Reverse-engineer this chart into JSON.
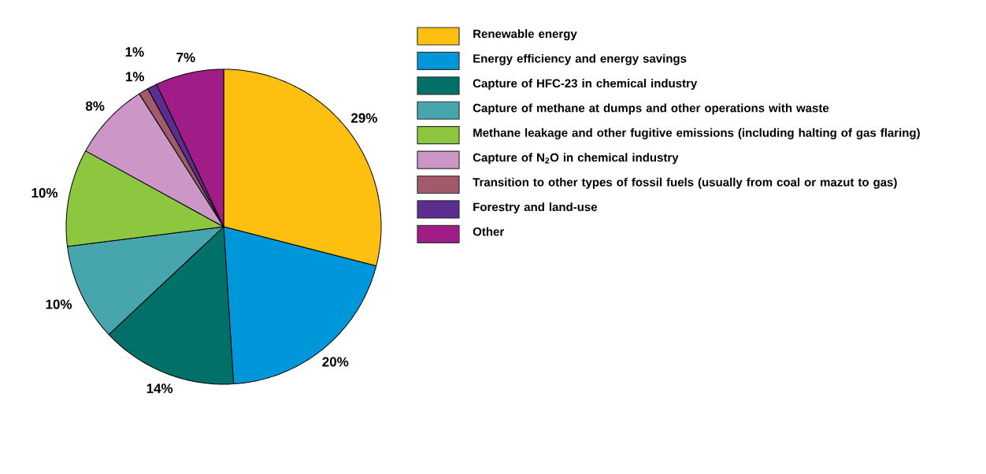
{
  "chart_data": {
    "type": "pie",
    "categories": [
      "Renewable energy",
      "Energy efficiency and energy savings",
      "Capture of HFC-23 in chemical industry",
      "Capture of methane at dumps and other operations with waste",
      "Methane leakage and other fugitive emissions (including halting of gas flaring)",
      "Capture of N$_{2}$O in chemical industry",
      "Transition to other types of fossil fuels (usually from coal or mazut to gas)",
      "Forestry and land-use",
      "Other"
    ],
    "values": [
      29,
      20,
      14,
      10,
      10,
      8,
      1,
      1,
      7
    ],
    "colors": [
      "#fdc010",
      "#0096da",
      "#007068",
      "#47a5ae",
      "#8dc63f",
      "#cc96c6",
      "#a25a6a",
      "#5b2d90",
      "#a01c86"
    ],
    "value_labels": [
      "29%",
      "20%",
      "14%",
      "10%",
      "10%",
      "8%",
      "1%",
      "1%",
      "7%"
    ],
    "legend": "right"
  }
}
